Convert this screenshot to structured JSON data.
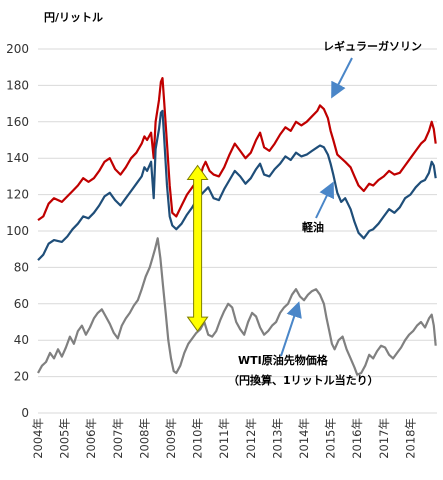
{
  "chart_data": {
    "type": "line",
    "title": "",
    "unit_label": "円/リットル",
    "xlabel": "",
    "ylabel": "",
    "ylim": [
      0,
      200
    ],
    "y_ticks": [
      0,
      20,
      40,
      60,
      80,
      100,
      120,
      140,
      160,
      180,
      200
    ],
    "x_range": [
      2004.0,
      2019.0
    ],
    "x_tick_labels": [
      "2004年",
      "2005年",
      "2006年",
      "2007年",
      "2008年",
      "2009年",
      "2010年",
      "2011年",
      "2012年",
      "2013年",
      "2014年",
      "2015年",
      "2016年",
      "2017年",
      "2018年"
    ],
    "x_tick_positions": [
      2004,
      2005,
      2006,
      2007,
      2008,
      2009,
      2010,
      2011,
      2012,
      2013,
      2014,
      2015,
      2016,
      2017,
      2018
    ],
    "grid": "horizontal",
    "series": [
      {
        "name": "レギュラーガソリン",
        "color": "#c00000",
        "points": [
          [
            2004.0,
            106
          ],
          [
            2004.2,
            108
          ],
          [
            2004.4,
            115
          ],
          [
            2004.6,
            118
          ],
          [
            2004.9,
            116
          ],
          [
            2005.1,
            119
          ],
          [
            2005.3,
            122
          ],
          [
            2005.5,
            125
          ],
          [
            2005.7,
            129
          ],
          [
            2005.9,
            127
          ],
          [
            2006.1,
            129
          ],
          [
            2006.3,
            133
          ],
          [
            2006.5,
            138
          ],
          [
            2006.7,
            140
          ],
          [
            2006.9,
            134
          ],
          [
            2007.1,
            131
          ],
          [
            2007.3,
            135
          ],
          [
            2007.5,
            140
          ],
          [
            2007.7,
            143
          ],
          [
            2007.9,
            148
          ],
          [
            2008.0,
            152
          ],
          [
            2008.1,
            150
          ],
          [
            2008.25,
            154
          ],
          [
            2008.35,
            140
          ],
          [
            2008.42,
            160
          ],
          [
            2008.55,
            172
          ],
          [
            2008.62,
            182
          ],
          [
            2008.68,
            184
          ],
          [
            2008.75,
            170
          ],
          [
            2008.85,
            148
          ],
          [
            2008.95,
            125
          ],
          [
            2009.05,
            110
          ],
          [
            2009.2,
            108
          ],
          [
            2009.4,
            114
          ],
          [
            2009.6,
            120
          ],
          [
            2009.8,
            124
          ],
          [
            2010.0,
            128
          ],
          [
            2010.1,
            130
          ],
          [
            2010.2,
            135
          ],
          [
            2010.3,
            138
          ],
          [
            2010.45,
            133
          ],
          [
            2010.6,
            131
          ],
          [
            2010.8,
            130
          ],
          [
            2011.0,
            135
          ],
          [
            2011.2,
            142
          ],
          [
            2011.4,
            148
          ],
          [
            2011.6,
            144
          ],
          [
            2011.8,
            140
          ],
          [
            2012.0,
            143
          ],
          [
            2012.2,
            150
          ],
          [
            2012.35,
            154
          ],
          [
            2012.5,
            146
          ],
          [
            2012.7,
            144
          ],
          [
            2012.9,
            148
          ],
          [
            2013.1,
            153
          ],
          [
            2013.3,
            157
          ],
          [
            2013.5,
            155
          ],
          [
            2013.7,
            160
          ],
          [
            2013.9,
            158
          ],
          [
            2014.1,
            160
          ],
          [
            2014.3,
            163
          ],
          [
            2014.5,
            166
          ],
          [
            2014.6,
            169
          ],
          [
            2014.75,
            167
          ],
          [
            2014.9,
            162
          ],
          [
            2015.0,
            155
          ],
          [
            2015.1,
            150
          ],
          [
            2015.25,
            142
          ],
          [
            2015.4,
            140
          ],
          [
            2015.55,
            138
          ],
          [
            2015.75,
            135
          ],
          [
            2015.9,
            130
          ],
          [
            2016.05,
            125
          ],
          [
            2016.25,
            122
          ],
          [
            2016.45,
            126
          ],
          [
            2016.6,
            125
          ],
          [
            2016.8,
            128
          ],
          [
            2017.0,
            130
          ],
          [
            2017.2,
            133
          ],
          [
            2017.4,
            131
          ],
          [
            2017.6,
            132
          ],
          [
            2017.8,
            136
          ],
          [
            2018.0,
            140
          ],
          [
            2018.2,
            144
          ],
          [
            2018.4,
            148
          ],
          [
            2018.55,
            150
          ],
          [
            2018.7,
            155
          ],
          [
            2018.8,
            160
          ],
          [
            2018.88,
            156
          ],
          [
            2018.95,
            148
          ]
        ]
      },
      {
        "name": "軽油",
        "color": "#1f4e79",
        "points": [
          [
            2004.0,
            84
          ],
          [
            2004.2,
            87
          ],
          [
            2004.4,
            93
          ],
          [
            2004.6,
            95
          ],
          [
            2004.9,
            94
          ],
          [
            2005.1,
            97
          ],
          [
            2005.3,
            101
          ],
          [
            2005.5,
            104
          ],
          [
            2005.7,
            108
          ],
          [
            2005.9,
            107
          ],
          [
            2006.1,
            110
          ],
          [
            2006.3,
            114
          ],
          [
            2006.5,
            119
          ],
          [
            2006.7,
            121
          ],
          [
            2006.9,
            117
          ],
          [
            2007.1,
            114
          ],
          [
            2007.3,
            118
          ],
          [
            2007.5,
            122
          ],
          [
            2007.7,
            126
          ],
          [
            2007.9,
            130
          ],
          [
            2008.0,
            135
          ],
          [
            2008.1,
            133
          ],
          [
            2008.25,
            138
          ],
          [
            2008.35,
            118
          ],
          [
            2008.42,
            145
          ],
          [
            2008.55,
            156
          ],
          [
            2008.62,
            165
          ],
          [
            2008.68,
            166
          ],
          [
            2008.75,
            150
          ],
          [
            2008.85,
            125
          ],
          [
            2008.95,
            108
          ],
          [
            2009.05,
            103
          ],
          [
            2009.2,
            101
          ],
          [
            2009.4,
            104
          ],
          [
            2009.6,
            109
          ],
          [
            2009.8,
            113
          ],
          [
            2010.0,
            118
          ],
          [
            2010.2,
            121
          ],
          [
            2010.4,
            124
          ],
          [
            2010.6,
            118
          ],
          [
            2010.8,
            117
          ],
          [
            2011.0,
            123
          ],
          [
            2011.2,
            128
          ],
          [
            2011.4,
            133
          ],
          [
            2011.6,
            130
          ],
          [
            2011.8,
            126
          ],
          [
            2012.0,
            129
          ],
          [
            2012.2,
            134
          ],
          [
            2012.35,
            137
          ],
          [
            2012.5,
            131
          ],
          [
            2012.7,
            130
          ],
          [
            2012.9,
            134
          ],
          [
            2013.1,
            137
          ],
          [
            2013.3,
            141
          ],
          [
            2013.5,
            139
          ],
          [
            2013.7,
            143
          ],
          [
            2013.9,
            141
          ],
          [
            2014.1,
            142
          ],
          [
            2014.3,
            144
          ],
          [
            2014.5,
            146
          ],
          [
            2014.6,
            147
          ],
          [
            2014.75,
            146
          ],
          [
            2014.9,
            142
          ],
          [
            2015.0,
            137
          ],
          [
            2015.1,
            131
          ],
          [
            2015.25,
            121
          ],
          [
            2015.4,
            116
          ],
          [
            2015.55,
            118
          ],
          [
            2015.75,
            112
          ],
          [
            2015.9,
            105
          ],
          [
            2016.05,
            99
          ],
          [
            2016.25,
            96
          ],
          [
            2016.45,
            100
          ],
          [
            2016.6,
            101
          ],
          [
            2016.8,
            104
          ],
          [
            2017.0,
            108
          ],
          [
            2017.2,
            112
          ],
          [
            2017.4,
            110
          ],
          [
            2017.6,
            113
          ],
          [
            2017.8,
            118
          ],
          [
            2018.0,
            120
          ],
          [
            2018.2,
            124
          ],
          [
            2018.4,
            127
          ],
          [
            2018.55,
            128
          ],
          [
            2018.7,
            132
          ],
          [
            2018.8,
            138
          ],
          [
            2018.88,
            136
          ],
          [
            2018.95,
            129
          ]
        ]
      },
      {
        "name": "WTI原油先物価格（円換算、1リットル当たり）",
        "color": "#808080",
        "points": [
          [
            2004.0,
            22
          ],
          [
            2004.15,
            26
          ],
          [
            2004.3,
            28
          ],
          [
            2004.45,
            33
          ],
          [
            2004.6,
            30
          ],
          [
            2004.75,
            35
          ],
          [
            2004.9,
            31
          ],
          [
            2005.05,
            36
          ],
          [
            2005.2,
            42
          ],
          [
            2005.35,
            38
          ],
          [
            2005.5,
            45
          ],
          [
            2005.65,
            48
          ],
          [
            2005.8,
            43
          ],
          [
            2005.95,
            47
          ],
          [
            2006.1,
            52
          ],
          [
            2006.25,
            55
          ],
          [
            2006.4,
            57
          ],
          [
            2006.55,
            53
          ],
          [
            2006.7,
            49
          ],
          [
            2006.85,
            44
          ],
          [
            2007.0,
            41
          ],
          [
            2007.15,
            48
          ],
          [
            2007.3,
            52
          ],
          [
            2007.45,
            55
          ],
          [
            2007.6,
            59
          ],
          [
            2007.75,
            62
          ],
          [
            2007.9,
            68
          ],
          [
            2008.05,
            75
          ],
          [
            2008.2,
            80
          ],
          [
            2008.3,
            85
          ],
          [
            2008.4,
            90
          ],
          [
            2008.5,
            96
          ],
          [
            2008.6,
            85
          ],
          [
            2008.7,
            70
          ],
          [
            2008.8,
            55
          ],
          [
            2008.9,
            40
          ],
          [
            2009.0,
            30
          ],
          [
            2009.1,
            23
          ],
          [
            2009.2,
            22
          ],
          [
            2009.35,
            26
          ],
          [
            2009.5,
            33
          ],
          [
            2009.65,
            38
          ],
          [
            2009.8,
            41
          ],
          [
            2009.95,
            44
          ],
          [
            2010.1,
            46
          ],
          [
            2010.25,
            50
          ],
          [
            2010.4,
            43
          ],
          [
            2010.55,
            42
          ],
          [
            2010.7,
            45
          ],
          [
            2010.85,
            51
          ],
          [
            2011.0,
            56
          ],
          [
            2011.15,
            60
          ],
          [
            2011.3,
            58
          ],
          [
            2011.45,
            50
          ],
          [
            2011.6,
            46
          ],
          [
            2011.75,
            43
          ],
          [
            2011.9,
            50
          ],
          [
            2012.05,
            55
          ],
          [
            2012.2,
            53
          ],
          [
            2012.35,
            47
          ],
          [
            2012.5,
            43
          ],
          [
            2012.65,
            45
          ],
          [
            2012.8,
            48
          ],
          [
            2012.95,
            50
          ],
          [
            2013.1,
            55
          ],
          [
            2013.25,
            58
          ],
          [
            2013.4,
            60
          ],
          [
            2013.55,
            65
          ],
          [
            2013.7,
            68
          ],
          [
            2013.85,
            64
          ],
          [
            2014.0,
            62
          ],
          [
            2014.15,
            65
          ],
          [
            2014.3,
            67
          ],
          [
            2014.45,
            68
          ],
          [
            2014.6,
            65
          ],
          [
            2014.75,
            60
          ],
          [
            2014.85,
            52
          ],
          [
            2014.95,
            45
          ],
          [
            2015.05,
            38
          ],
          [
            2015.15,
            35
          ],
          [
            2015.3,
            40
          ],
          [
            2015.45,
            42
          ],
          [
            2015.6,
            35
          ],
          [
            2015.75,
            30
          ],
          [
            2015.9,
            25
          ],
          [
            2016.0,
            21
          ],
          [
            2016.15,
            22
          ],
          [
            2016.3,
            26
          ],
          [
            2016.45,
            32
          ],
          [
            2016.6,
            30
          ],
          [
            2016.75,
            34
          ],
          [
            2016.9,
            37
          ],
          [
            2017.05,
            36
          ],
          [
            2017.2,
            32
          ],
          [
            2017.35,
            30
          ],
          [
            2017.5,
            33
          ],
          [
            2017.65,
            36
          ],
          [
            2017.8,
            40
          ],
          [
            2017.95,
            43
          ],
          [
            2018.1,
            45
          ],
          [
            2018.25,
            48
          ],
          [
            2018.4,
            50
          ],
          [
            2018.55,
            47
          ],
          [
            2018.7,
            52
          ],
          [
            2018.8,
            54
          ],
          [
            2018.88,
            48
          ],
          [
            2018.95,
            37
          ]
        ]
      }
    ],
    "annotations": {
      "gasoline_label": "レギュラーガソリン",
      "diesel_label": "軽油",
      "wti_label_line1": "WTI原油先物価格",
      "wti_label_line2": "（円換算、1リットル当たり）"
    },
    "gap_arrow": {
      "x": 2010.0,
      "y_top": 136,
      "y_bottom": 45,
      "fill_color": "#ffff00",
      "stroke_color": "#7f7f00"
    },
    "callout_arrow_color": "#4a86c8"
  }
}
